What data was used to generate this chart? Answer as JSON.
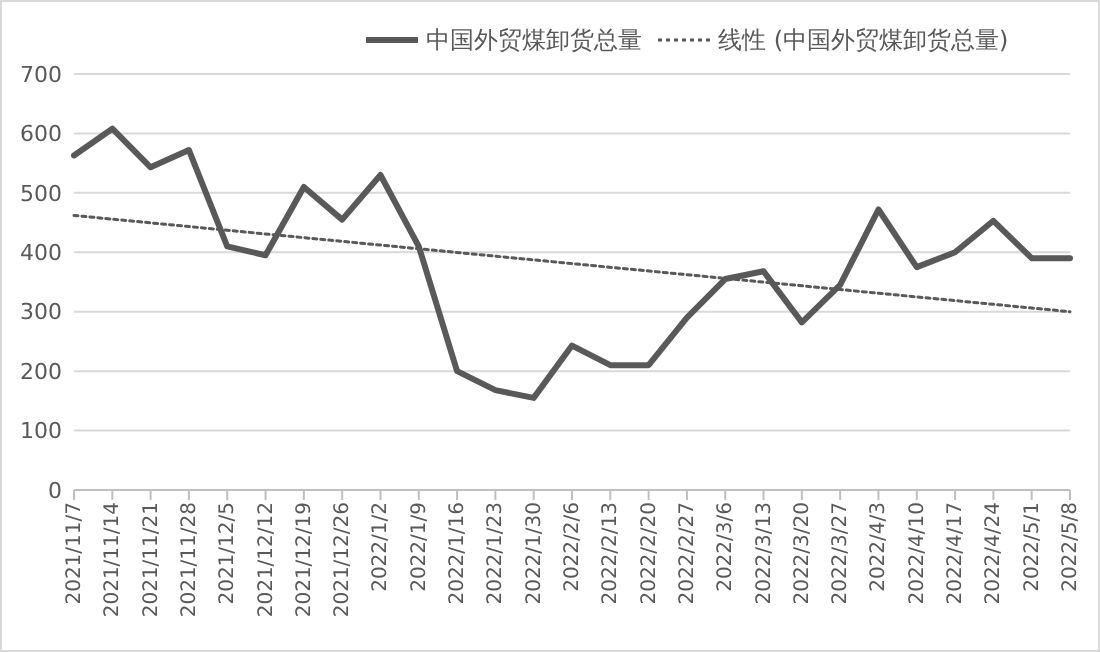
{
  "chart_data": {
    "type": "line",
    "categories": [
      "2021/11/7",
      "2021/11/14",
      "2021/11/21",
      "2021/11/28",
      "2021/12/5",
      "2021/12/12",
      "2021/12/19",
      "2021/12/26",
      "2022/1/2",
      "2022/1/9",
      "2022/1/16",
      "2022/1/23",
      "2022/1/30",
      "2022/2/6",
      "2022/2/13",
      "2022/2/20",
      "2022/2/27",
      "2022/3/6",
      "2022/3/13",
      "2022/3/20",
      "2022/3/27",
      "2022/4/3",
      "2022/4/10",
      "2022/4/17",
      "2022/4/24",
      "2022/5/1",
      "2022/5/8"
    ],
    "series": [
      {
        "name": "中国外贸煤卸货总量",
        "color": "#595959",
        "line_style": "solid",
        "values": [
          563,
          608,
          543,
          572,
          410,
          395,
          510,
          455,
          530,
          410,
          200,
          168,
          155,
          243,
          210,
          210,
          290,
          355,
          368,
          282,
          345,
          472,
          375,
          400,
          453,
          390,
          390
        ]
      },
      {
        "name": "线性 (中国外贸煤卸货总量)",
        "color": "#595959",
        "line_style": "dotted",
        "x": [
          "2021/11/7",
          "2022/5/8"
        ],
        "values": [
          462,
          300
        ]
      }
    ],
    "ylim": [
      0,
      700
    ],
    "yticks": [
      0,
      100,
      200,
      300,
      400,
      500,
      600,
      700
    ],
    "grid": "y",
    "legend": "top right",
    "marker": "none"
  }
}
